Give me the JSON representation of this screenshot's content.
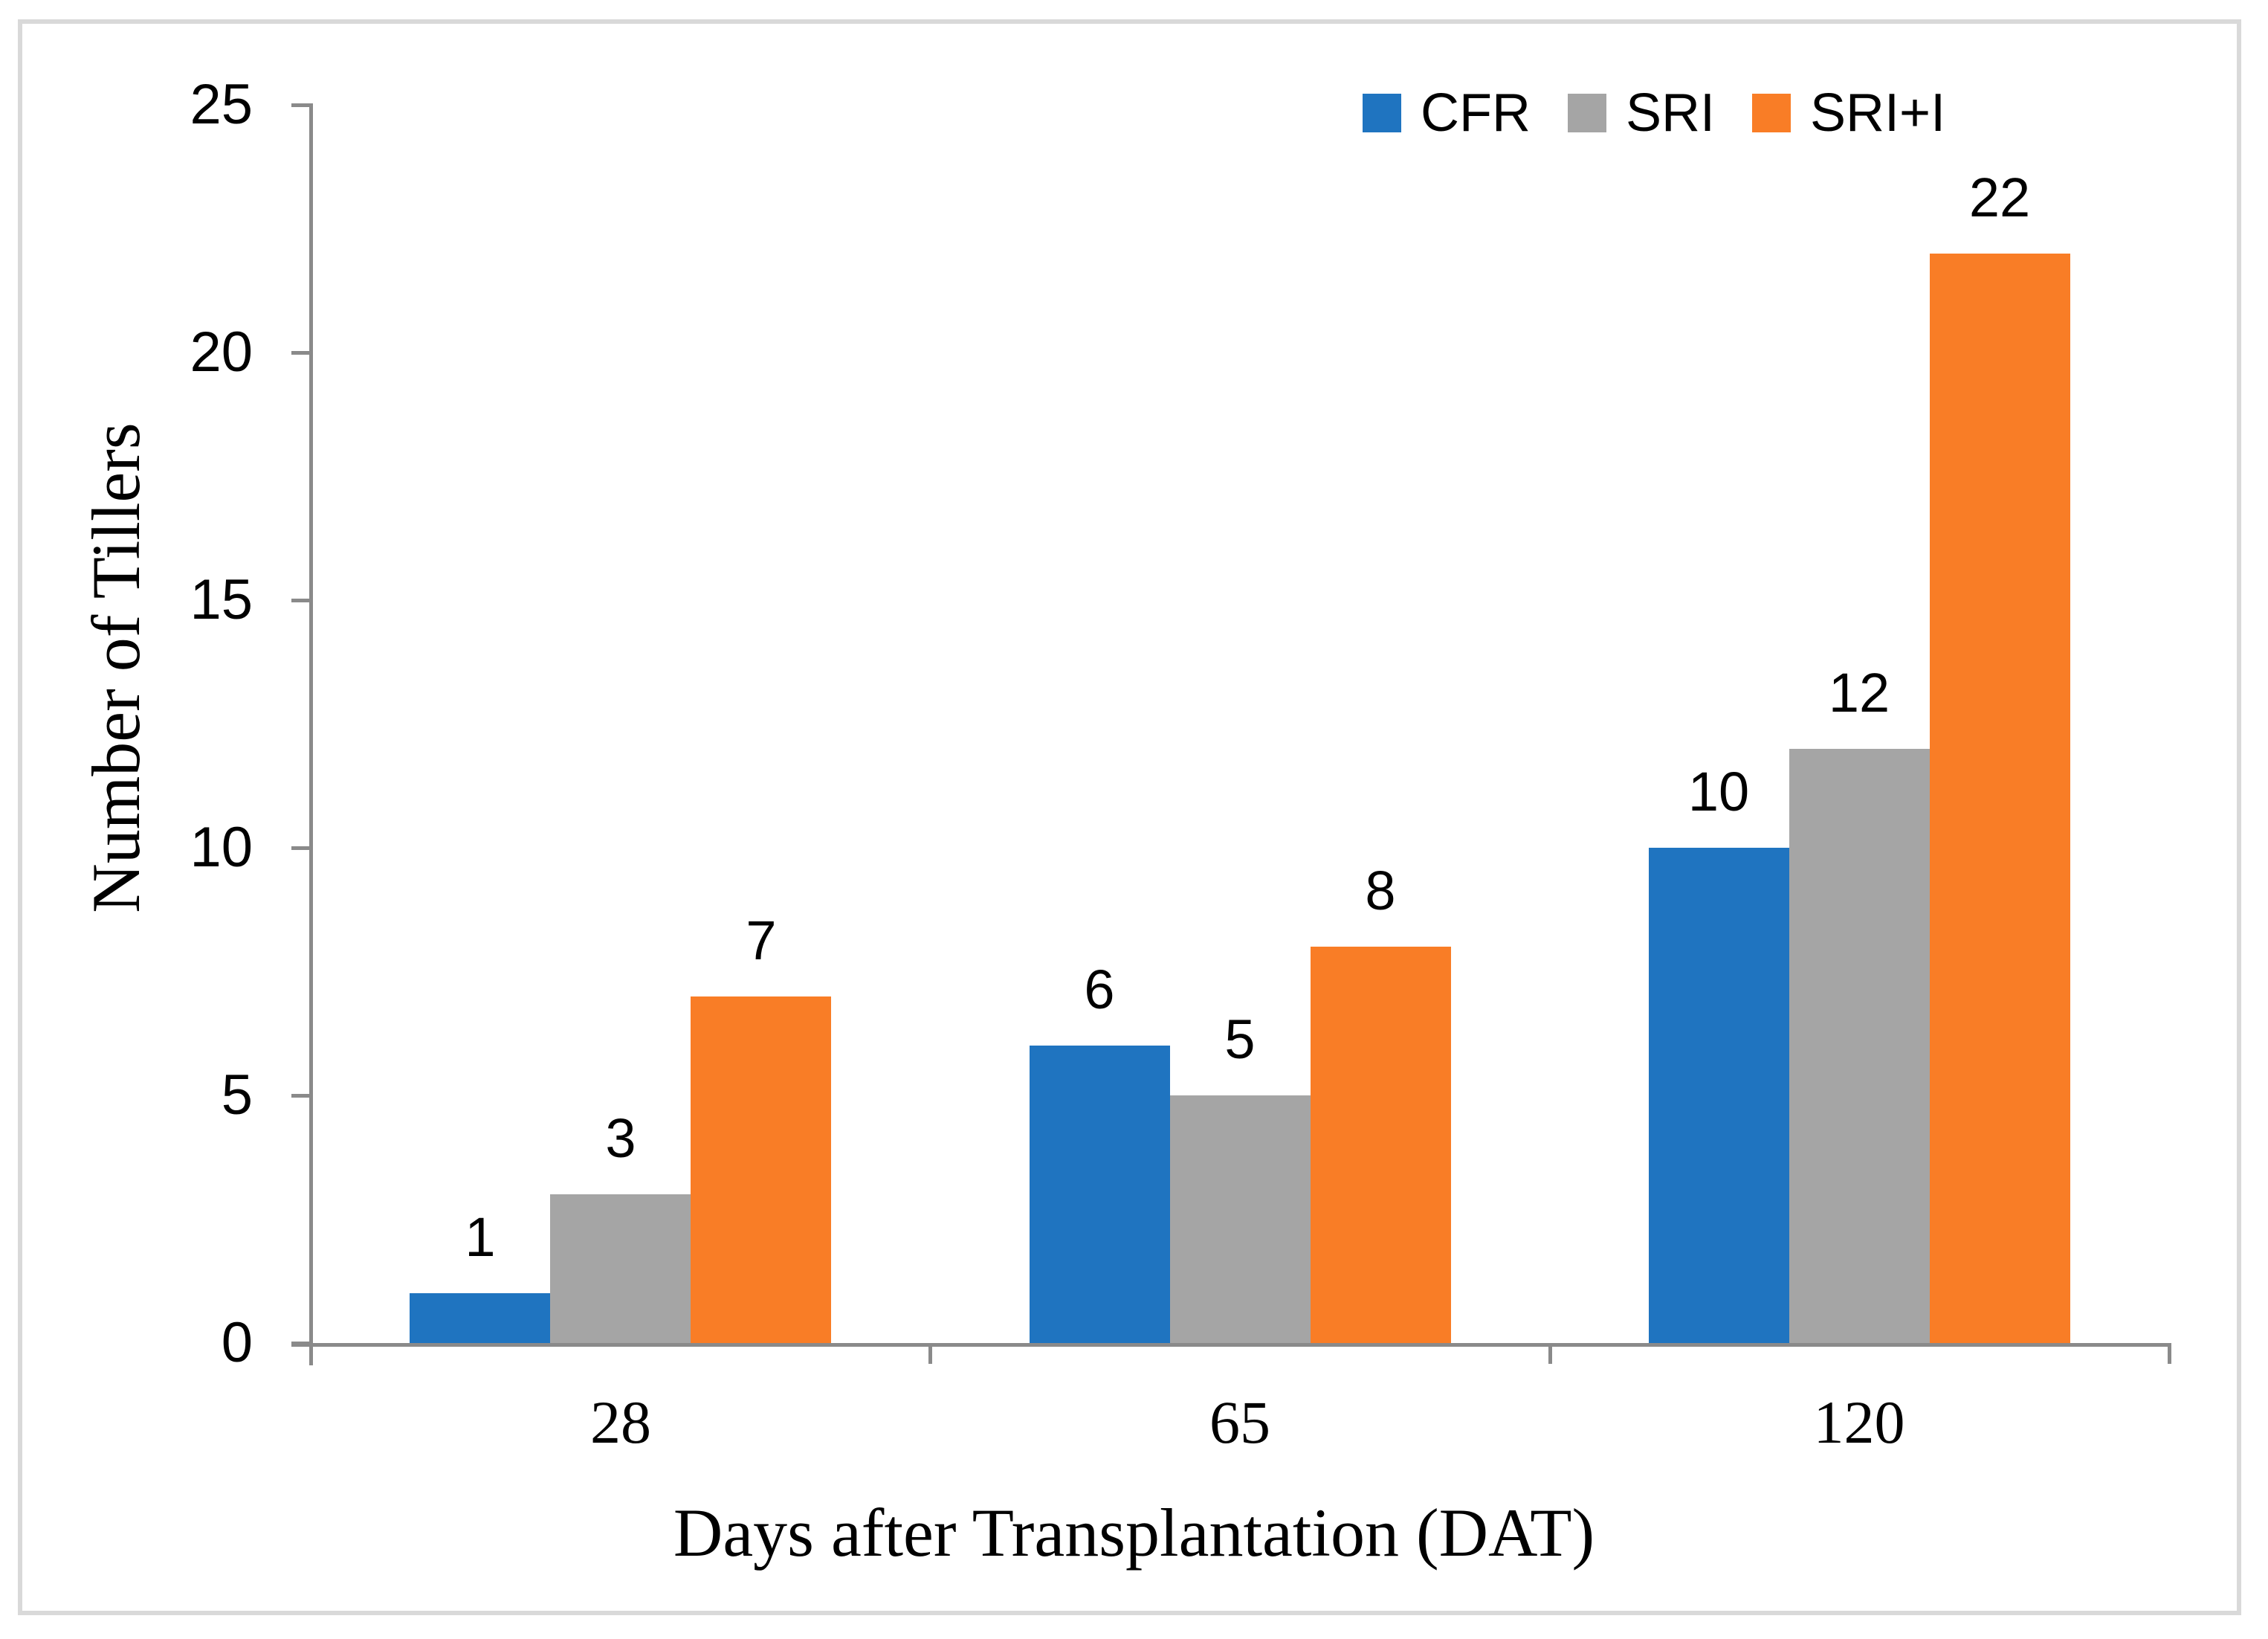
{
  "chart_data": {
    "type": "bar",
    "title": "",
    "categories": [
      "28",
      "65",
      "120"
    ],
    "series": [
      {
        "name": "CFR",
        "color": "#1F74C0",
        "values": [
          1,
          6,
          10
        ]
      },
      {
        "name": "SRI",
        "color": "#A5A5A5",
        "values": [
          3,
          5,
          12
        ]
      },
      {
        "name": "SRI+I",
        "color": "#F97D26",
        "values": [
          7,
          8,
          22
        ]
      }
    ],
    "data_labels": [
      [
        1,
        3,
        7
      ],
      [
        6,
        5,
        8
      ],
      [
        10,
        12,
        22
      ]
    ],
    "xlabel": "Days after Transplantation (DAT)",
    "ylabel": "Number of Tillers",
    "ylim": [
      0,
      25
    ],
    "yticks": [
      "0",
      "5",
      "10",
      "15",
      "20",
      "25"
    ],
    "grid": false,
    "legend_position": "top-right",
    "legend_labels": [
      "CFR",
      "SRI",
      "SRI+I"
    ],
    "axis_color": "#8A8A8A",
    "border_color": "#D9D9D9",
    "text_color": "#000000"
  }
}
